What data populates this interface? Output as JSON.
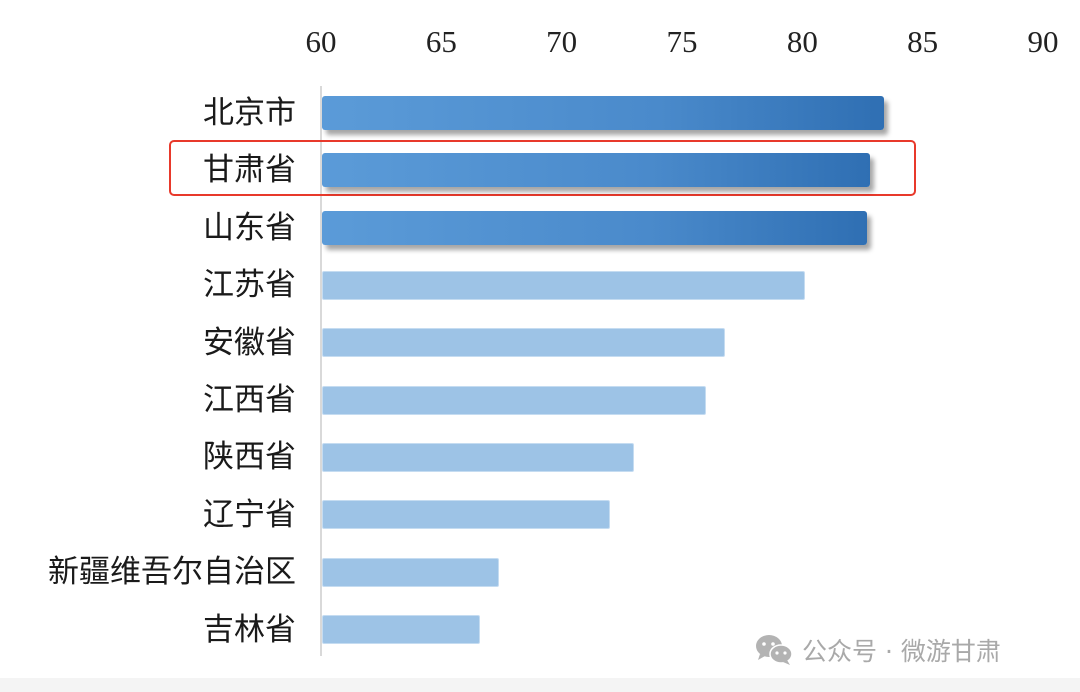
{
  "chart_data": {
    "type": "bar",
    "orientation": "horizontal",
    "title": "",
    "xlabel": "",
    "ylabel": "",
    "xlim": [
      60,
      90
    ],
    "x_ticks": [
      "60",
      "65",
      "70",
      "75",
      "80",
      "85",
      "90"
    ],
    "grid": false,
    "categories": [
      "北京市",
      "甘肃省",
      "山东省",
      "江苏省",
      "安徽省",
      "江西省",
      "陕西省",
      "辽宁省",
      "新疆维吾尔自治区",
      "吉林省"
    ],
    "values": [
      83.4,
      82.8,
      82.7,
      80.1,
      76.8,
      76.0,
      73.0,
      72.0,
      67.4,
      66.6
    ],
    "top_group_highlighted": [
      "北京市",
      "甘肃省",
      "山东省"
    ],
    "annotation": "甘肃省 row outlined in red"
  },
  "colors": {
    "dark_bar": "#4a8acb",
    "light_bar": "#9dc3e6",
    "highlight_border": "#e8392b",
    "axis_line": "#d9d9d9"
  },
  "watermark": {
    "icon": "wechat-icon",
    "text": "公众号 · 微游甘肃"
  }
}
